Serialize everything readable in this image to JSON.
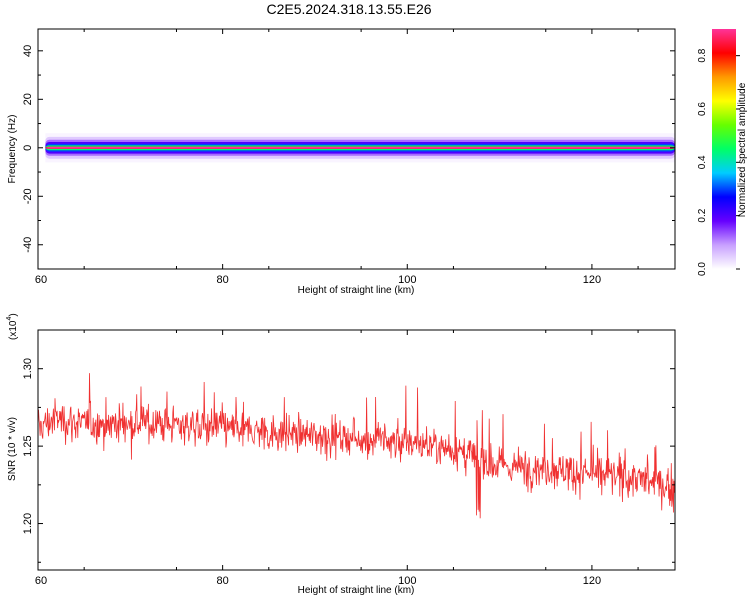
{
  "title": "C2E5.2024.318.13.55.E26",
  "chart_data": [
    {
      "type": "heatmap",
      "name": "spectrogram",
      "xlabel": "Height of straight line (km)",
      "ylabel": "Frequency (Hz)",
      "xlim": [
        60,
        129
      ],
      "ylim": [
        -50,
        49
      ],
      "xticks": [
        "60",
        "80",
        "100",
        "120"
      ],
      "yticks": [
        "40",
        "20",
        "0",
        "-20",
        "-40"
      ],
      "colorbar": {
        "label": "Normalized spectral amplitude",
        "ticks": [
          "0.0",
          "0.2",
          "0.4",
          "0.6",
          "0.8"
        ],
        "range": [
          0,
          0.9
        ],
        "colors": [
          "#ffffff",
          "#c8a0ff",
          "#6600ff",
          "#0000ff",
          "#00ccff",
          "#00ff66",
          "#66ff00",
          "#ffff00",
          "#ff9900",
          "#ff0000",
          "#ff3399"
        ]
      },
      "band": {
        "center_frequency": 0,
        "description_levels": [
          {
            "half_width_hz": 4.5,
            "amplitude": 0.05
          },
          {
            "half_width_hz": 3.3,
            "amplitude": 0.12
          },
          {
            "half_width_hz": 2.4,
            "amplitude": 0.2
          },
          {
            "half_width_hz": 1.6,
            "amplitude": 0.3
          },
          {
            "half_width_hz": 1.0,
            "amplitude": 0.45
          },
          {
            "half_width_hz": 0.5,
            "amplitude": 0.85
          }
        ]
      }
    },
    {
      "type": "line",
      "name": "snr",
      "xlabel": "Height of straight line (km)",
      "ylabel": "SNR (10 * v/v)",
      "y_multiplier": "(x10",
      "y_multiplier_exp": "4",
      "y_multiplier_close": ")",
      "xlim": [
        60,
        129
      ],
      "ylim": [
        1.17,
        1.325
      ],
      "xticks": [
        "60",
        "80",
        "100",
        "120"
      ],
      "yticks": [
        "1.30",
        "1.25",
        "1.20"
      ],
      "color": "#f03030",
      "trend": {
        "x": [
          60,
          62,
          65,
          70,
          75,
          80,
          85,
          90,
          95,
          100,
          104,
          107,
          110,
          115,
          120,
          125,
          129
        ],
        "y": [
          1.262,
          1.268,
          1.264,
          1.265,
          1.264,
          1.262,
          1.259,
          1.257,
          1.255,
          1.252,
          1.25,
          1.243,
          1.237,
          1.236,
          1.232,
          1.229,
          1.222
        ]
      },
      "noise_amplitude": 0.016,
      "samples": 1200
    }
  ]
}
